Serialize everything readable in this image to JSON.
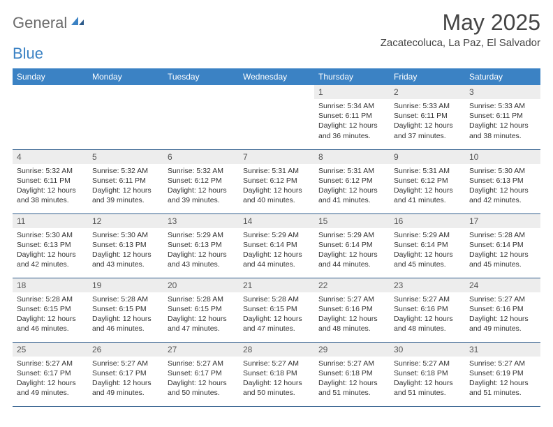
{
  "logo": {
    "word1": "General",
    "word2": "Blue"
  },
  "title": "May 2025",
  "subtitle": "Zacatecoluca, La Paz, El Salvador",
  "theme": {
    "header_bg": "#3b82c4",
    "header_fg": "#ffffff",
    "daynum_bg": "#ededed",
    "row_border": "#2c5a8a",
    "logo_gray": "#6b6b6b",
    "logo_blue": "#3b82c4",
    "body_bg": "#ffffff"
  },
  "weekdays": [
    "Sunday",
    "Monday",
    "Tuesday",
    "Wednesday",
    "Thursday",
    "Friday",
    "Saturday"
  ],
  "weeks": [
    [
      {
        "empty": true
      },
      {
        "empty": true
      },
      {
        "empty": true
      },
      {
        "empty": true
      },
      {
        "n": "1",
        "sr": "5:34 AM",
        "ss": "6:11 PM",
        "dl": "12 hours and 36 minutes."
      },
      {
        "n": "2",
        "sr": "5:33 AM",
        "ss": "6:11 PM",
        "dl": "12 hours and 37 minutes."
      },
      {
        "n": "3",
        "sr": "5:33 AM",
        "ss": "6:11 PM",
        "dl": "12 hours and 38 minutes."
      }
    ],
    [
      {
        "n": "4",
        "sr": "5:32 AM",
        "ss": "6:11 PM",
        "dl": "12 hours and 38 minutes."
      },
      {
        "n": "5",
        "sr": "5:32 AM",
        "ss": "6:11 PM",
        "dl": "12 hours and 39 minutes."
      },
      {
        "n": "6",
        "sr": "5:32 AM",
        "ss": "6:12 PM",
        "dl": "12 hours and 39 minutes."
      },
      {
        "n": "7",
        "sr": "5:31 AM",
        "ss": "6:12 PM",
        "dl": "12 hours and 40 minutes."
      },
      {
        "n": "8",
        "sr": "5:31 AM",
        "ss": "6:12 PM",
        "dl": "12 hours and 41 minutes."
      },
      {
        "n": "9",
        "sr": "5:31 AM",
        "ss": "6:12 PM",
        "dl": "12 hours and 41 minutes."
      },
      {
        "n": "10",
        "sr": "5:30 AM",
        "ss": "6:13 PM",
        "dl": "12 hours and 42 minutes."
      }
    ],
    [
      {
        "n": "11",
        "sr": "5:30 AM",
        "ss": "6:13 PM",
        "dl": "12 hours and 42 minutes."
      },
      {
        "n": "12",
        "sr": "5:30 AM",
        "ss": "6:13 PM",
        "dl": "12 hours and 43 minutes."
      },
      {
        "n": "13",
        "sr": "5:29 AM",
        "ss": "6:13 PM",
        "dl": "12 hours and 43 minutes."
      },
      {
        "n": "14",
        "sr": "5:29 AM",
        "ss": "6:14 PM",
        "dl": "12 hours and 44 minutes."
      },
      {
        "n": "15",
        "sr": "5:29 AM",
        "ss": "6:14 PM",
        "dl": "12 hours and 44 minutes."
      },
      {
        "n": "16",
        "sr": "5:29 AM",
        "ss": "6:14 PM",
        "dl": "12 hours and 45 minutes."
      },
      {
        "n": "17",
        "sr": "5:28 AM",
        "ss": "6:14 PM",
        "dl": "12 hours and 45 minutes."
      }
    ],
    [
      {
        "n": "18",
        "sr": "5:28 AM",
        "ss": "6:15 PM",
        "dl": "12 hours and 46 minutes."
      },
      {
        "n": "19",
        "sr": "5:28 AM",
        "ss": "6:15 PM",
        "dl": "12 hours and 46 minutes."
      },
      {
        "n": "20",
        "sr": "5:28 AM",
        "ss": "6:15 PM",
        "dl": "12 hours and 47 minutes."
      },
      {
        "n": "21",
        "sr": "5:28 AM",
        "ss": "6:15 PM",
        "dl": "12 hours and 47 minutes."
      },
      {
        "n": "22",
        "sr": "5:27 AM",
        "ss": "6:16 PM",
        "dl": "12 hours and 48 minutes."
      },
      {
        "n": "23",
        "sr": "5:27 AM",
        "ss": "6:16 PM",
        "dl": "12 hours and 48 minutes."
      },
      {
        "n": "24",
        "sr": "5:27 AM",
        "ss": "6:16 PM",
        "dl": "12 hours and 49 minutes."
      }
    ],
    [
      {
        "n": "25",
        "sr": "5:27 AM",
        "ss": "6:17 PM",
        "dl": "12 hours and 49 minutes."
      },
      {
        "n": "26",
        "sr": "5:27 AM",
        "ss": "6:17 PM",
        "dl": "12 hours and 49 minutes."
      },
      {
        "n": "27",
        "sr": "5:27 AM",
        "ss": "6:17 PM",
        "dl": "12 hours and 50 minutes."
      },
      {
        "n": "28",
        "sr": "5:27 AM",
        "ss": "6:18 PM",
        "dl": "12 hours and 50 minutes."
      },
      {
        "n": "29",
        "sr": "5:27 AM",
        "ss": "6:18 PM",
        "dl": "12 hours and 51 minutes."
      },
      {
        "n": "30",
        "sr": "5:27 AM",
        "ss": "6:18 PM",
        "dl": "12 hours and 51 minutes."
      },
      {
        "n": "31",
        "sr": "5:27 AM",
        "ss": "6:19 PM",
        "dl": "12 hours and 51 minutes."
      }
    ]
  ],
  "labels": {
    "sunrise": "Sunrise:",
    "sunset": "Sunset:",
    "daylight": "Daylight:"
  }
}
